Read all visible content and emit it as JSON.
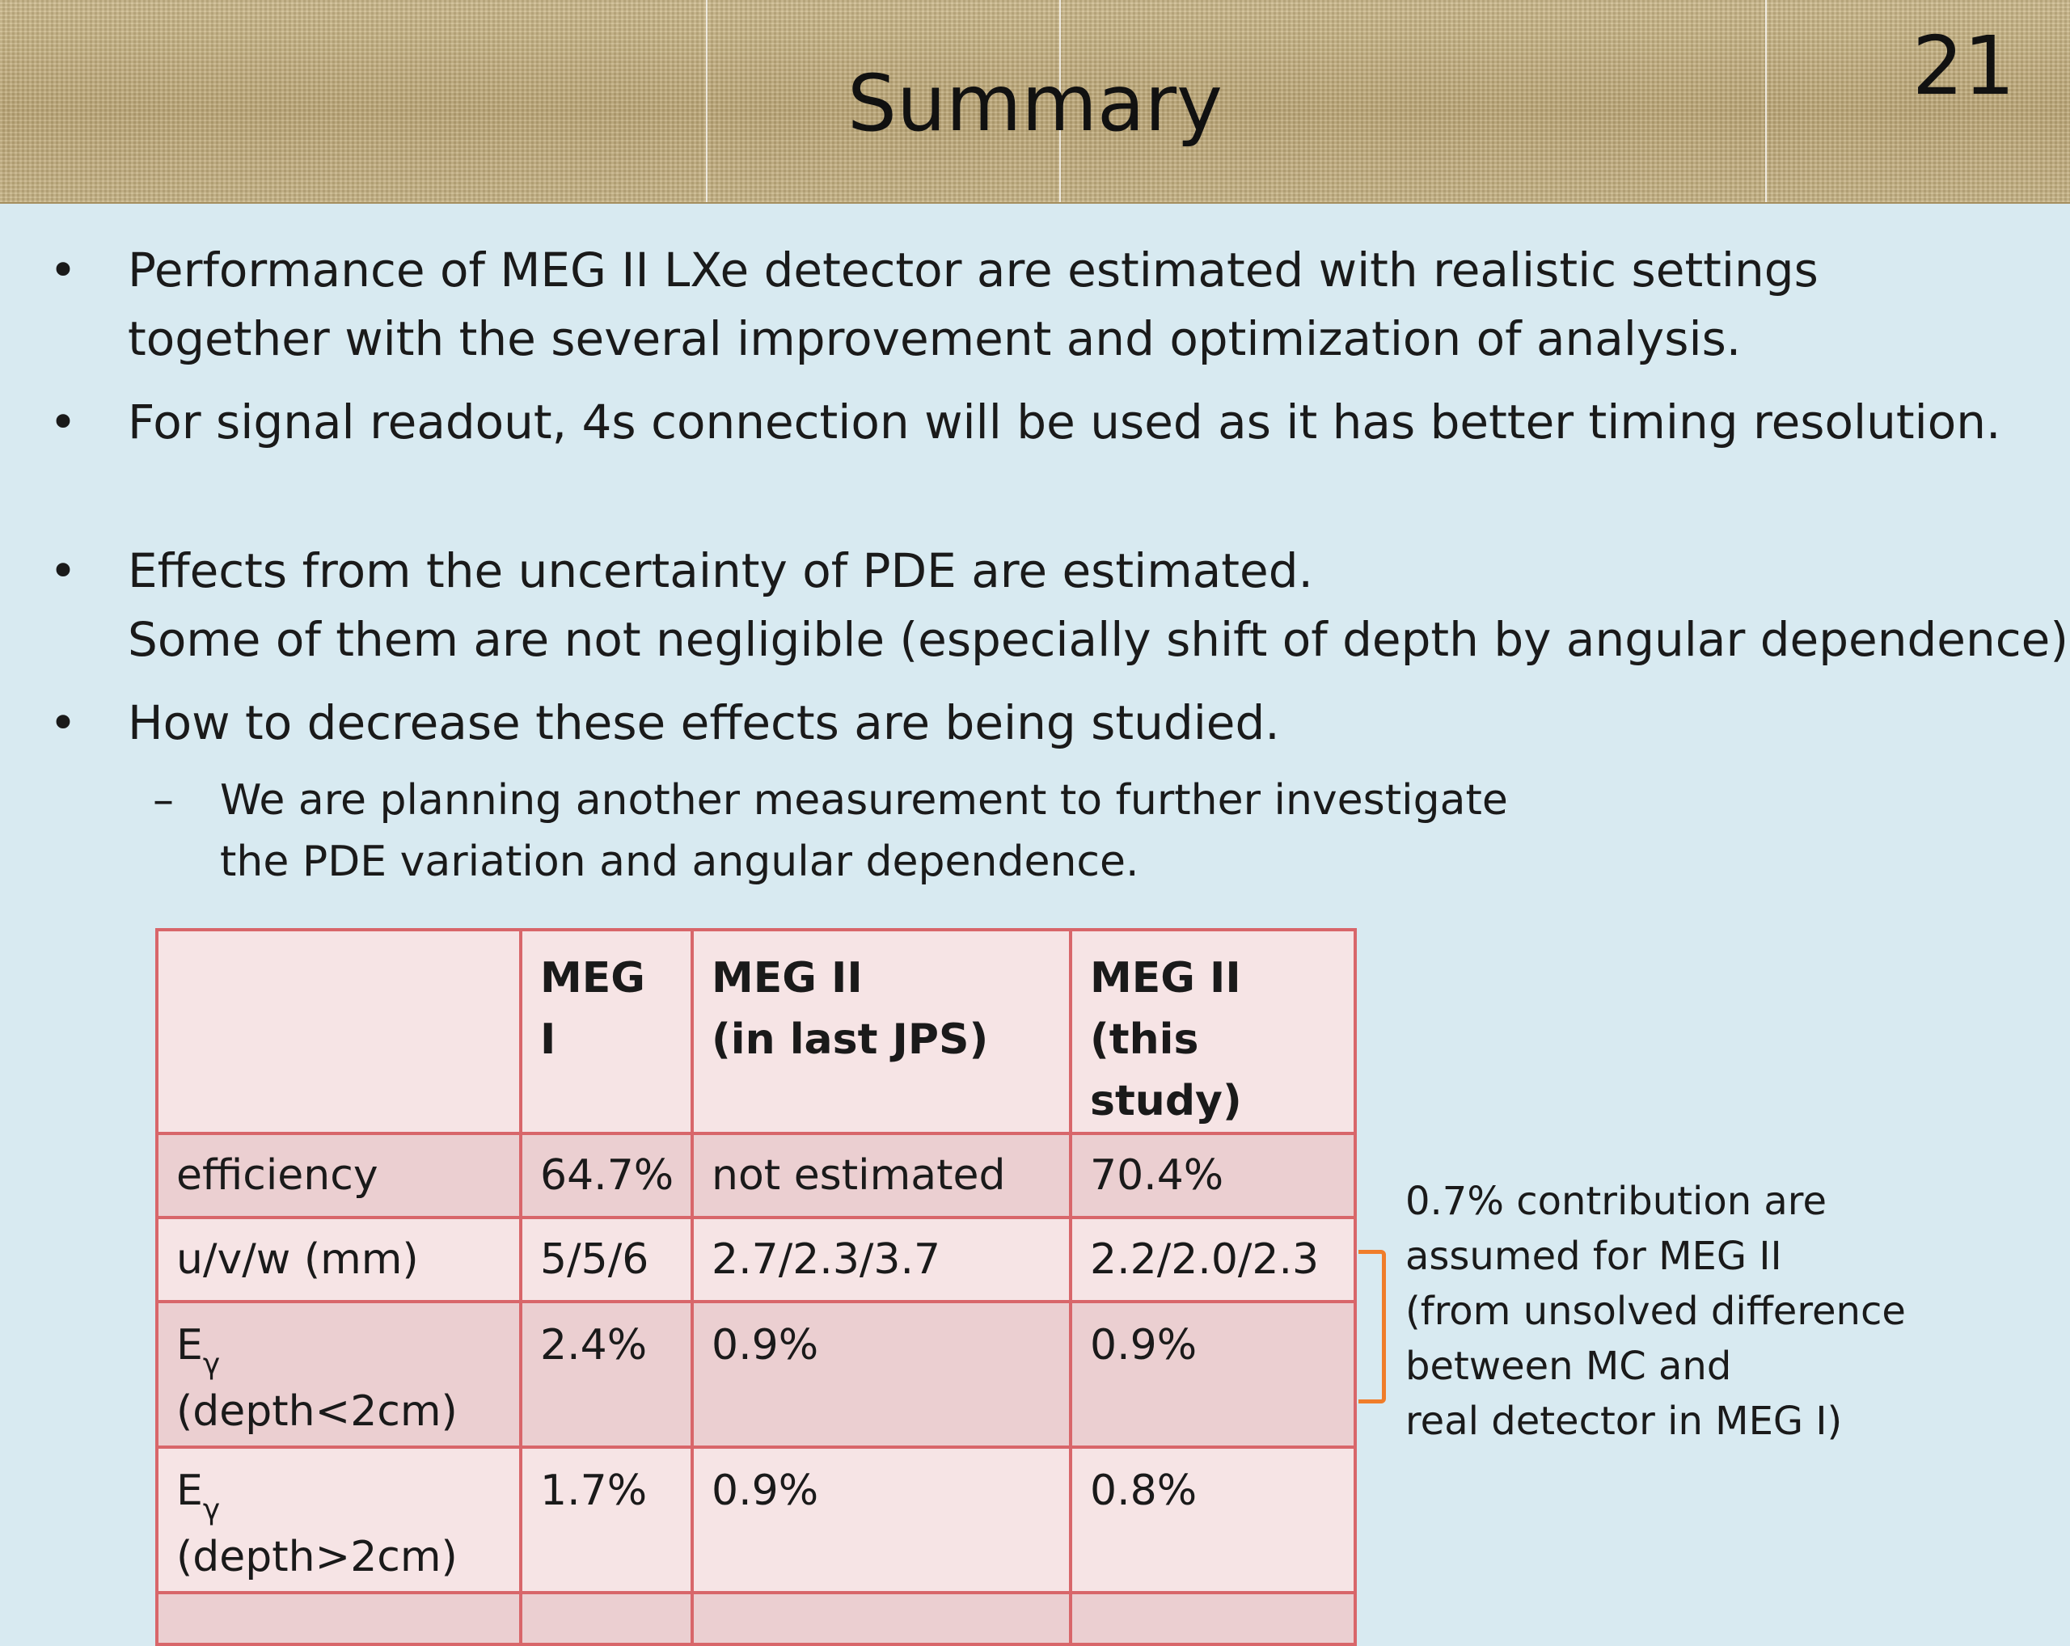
{
  "slide": {
    "title": "Summary",
    "number": "21"
  },
  "bullets": [
    {
      "mark": "•",
      "lines": [
        "Performance of MEG II LXe detector are estimated with realistic settings",
        "together with the several improvement and optimization of analysis."
      ]
    },
    {
      "mark": "•",
      "lines": [
        "For signal readout, 4s connection will be used as it has better timing resolution."
      ]
    },
    {
      "mark": "•",
      "lines": [
        "Effects from the uncertainty of PDE are estimated.",
        "Some of them are not negligible (especially shift of depth by angular dependence)."
      ]
    },
    {
      "mark": "•",
      "lines": [
        "How to decrease these effects are being studied."
      ]
    }
  ],
  "subbullet": {
    "mark": "–",
    "lines": [
      "We are planning another measurement to further investigate",
      "the PDE variation and angular dependence."
    ]
  },
  "table": {
    "headers": [
      "",
      "MEG I",
      "MEG II",
      "(in last JPS)",
      "MEG II",
      "(this study)"
    ],
    "rows": [
      {
        "label": "efficiency",
        "meg1": "64.7%",
        "meg2_jps": "not estimated",
        "meg2_study": "70.4%"
      },
      {
        "label": "u/v/w (mm)",
        "meg1": "5/5/6",
        "meg2_jps": "2.7/2.3/3.7",
        "meg2_study": "2.2/2.0/2.3"
      },
      {
        "label_main": "E",
        "label_sub": "γ",
        "label_extra": "(depth<2cm)",
        "meg1": "2.4%",
        "meg2_jps": "0.9%",
        "meg2_study": "0.9%"
      },
      {
        "label_main": "E",
        "label_sub": "γ",
        "label_extra": "(depth>2cm)",
        "meg1": "1.7%",
        "meg2_jps": "0.9%",
        "meg2_study": "0.8%"
      }
    ]
  },
  "note": {
    "lines": [
      "0.7% contribution are",
      "assumed for MEG II",
      "(from unsolved difference",
      "between MC and",
      "real detector in MEG I)"
    ],
    "bracket_color": "#f07d2a"
  },
  "colors": {
    "background": "#d8eaf1",
    "table_border": "#d8666a",
    "row_dark": "#ebcfd1",
    "row_light": "#f6e4e5"
  }
}
